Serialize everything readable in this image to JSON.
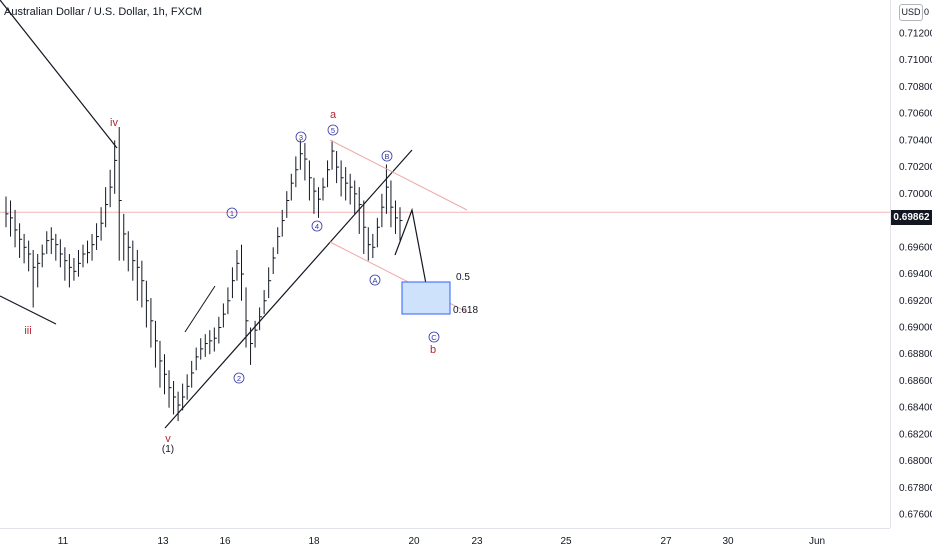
{
  "header": {
    "title": "Australian Dollar / U.S. Dollar, 1h, FXCM"
  },
  "price_axis": {
    "currency_button": "USD",
    "currency_suffix": "0",
    "ticks": [
      "0.71200",
      "0.71000",
      "0.70800",
      "0.70600",
      "0.70400",
      "0.70200",
      "0.70000",
      "0.69800",
      "0.69600",
      "0.69400",
      "0.69200",
      "0.69000",
      "0.68800",
      "0.68600",
      "0.68400",
      "0.68200",
      "0.68000",
      "0.67800",
      "0.67600"
    ],
    "last_price": "0.69862"
  },
  "time_axis": {
    "ticks": [
      "11",
      "13",
      "16",
      "18",
      "20",
      "23",
      "25",
      "27",
      "30",
      "Jun"
    ]
  },
  "colors": {
    "line": "#131722",
    "wave_red": "#b22833",
    "wave_blue": "#3135a6",
    "channel_red": "#f0a8a8",
    "box_fill": "#cfe2fb",
    "box_stroke": "#2962ff",
    "current_line": "#f4b6b6"
  },
  "chart_data": {
    "type": "ohlc",
    "title": "Australian Dollar / U.S. Dollar, 1h, FXCM",
    "ylim": [
      0.675,
      0.7145
    ],
    "series": [
      {
        "name": "AUD/USD",
        "points": [
          [
            0.6998,
            0.6985,
            0.6975
          ],
          [
            0.6995,
            0.6982,
            0.6968
          ],
          [
            0.6988,
            0.6973,
            0.696
          ],
          [
            0.6978,
            0.6966,
            0.6952
          ],
          [
            0.697,
            0.696,
            0.6948
          ],
          [
            0.6965,
            0.6955,
            0.6942
          ],
          [
            0.6958,
            0.6945,
            0.6915
          ],
          [
            0.6955,
            0.6948,
            0.693
          ],
          [
            0.6962,
            0.6955,
            0.6945
          ],
          [
            0.6972,
            0.6965,
            0.6955
          ],
          [
            0.6975,
            0.6966,
            0.6955
          ],
          [
            0.697,
            0.6962,
            0.695
          ],
          [
            0.6966,
            0.6955,
            0.6945
          ],
          [
            0.696,
            0.695,
            0.6935
          ],
          [
            0.6955,
            0.6945,
            0.693
          ],
          [
            0.6952,
            0.6942,
            0.6935
          ],
          [
            0.6958,
            0.6948,
            0.6938
          ],
          [
            0.6962,
            0.6955,
            0.6945
          ],
          [
            0.6965,
            0.6956,
            0.6948
          ],
          [
            0.697,
            0.6962,
            0.695
          ],
          [
            0.6978,
            0.6968,
            0.6958
          ],
          [
            0.699,
            0.6978,
            0.6965
          ],
          [
            0.7005,
            0.6992,
            0.6975
          ],
          [
            0.7018,
            0.7005,
            0.699
          ],
          [
            0.704,
            0.7025,
            0.7
          ],
          [
            0.705,
            0.6995,
            0.695
          ],
          [
            0.6985,
            0.697,
            0.695
          ],
          [
            0.6972,
            0.696,
            0.6942
          ],
          [
            0.6965,
            0.695,
            0.6935
          ],
          [
            0.6958,
            0.6945,
            0.692
          ],
          [
            0.695,
            0.6935,
            0.6915
          ],
          [
            0.6935,
            0.692,
            0.69
          ],
          [
            0.6922,
            0.6905,
            0.6885
          ],
          [
            0.6905,
            0.689,
            0.687
          ],
          [
            0.689,
            0.6875,
            0.6855
          ],
          [
            0.688,
            0.6865,
            0.685
          ],
          [
            0.6868,
            0.6855,
            0.684
          ],
          [
            0.686,
            0.6848,
            0.6835
          ],
          [
            0.6852,
            0.6842,
            0.683
          ],
          [
            0.6858,
            0.6848,
            0.6838
          ],
          [
            0.6865,
            0.6856,
            0.6846
          ],
          [
            0.6875,
            0.6866,
            0.6855
          ],
          [
            0.6885,
            0.6878,
            0.6868
          ],
          [
            0.6892,
            0.6884,
            0.6876
          ],
          [
            0.6895,
            0.6888,
            0.6878
          ],
          [
            0.6898,
            0.689,
            0.688
          ],
          [
            0.69,
            0.6892,
            0.6882
          ],
          [
            0.6908,
            0.69,
            0.6888
          ],
          [
            0.6918,
            0.691,
            0.69
          ],
          [
            0.693,
            0.692,
            0.691
          ],
          [
            0.6945,
            0.6935,
            0.6922
          ],
          [
            0.6958,
            0.6948,
            0.6935
          ],
          [
            0.6962,
            0.694,
            0.692
          ],
          [
            0.693,
            0.6905,
            0.6885
          ],
          [
            0.69,
            0.6888,
            0.6872
          ],
          [
            0.6905,
            0.6898,
            0.6885
          ],
          [
            0.6915,
            0.6908,
            0.6898
          ],
          [
            0.6928,
            0.692,
            0.691
          ],
          [
            0.6945,
            0.6935,
            0.6922
          ],
          [
            0.696,
            0.6952,
            0.694
          ],
          [
            0.6975,
            0.6968,
            0.6955
          ],
          [
            0.6988,
            0.698,
            0.6968
          ],
          [
            0.7002,
            0.6995,
            0.6982
          ],
          [
            0.7015,
            0.7008,
            0.6995
          ],
          [
            0.7028,
            0.7018,
            0.7005
          ],
          [
            0.704,
            0.703,
            0.7018
          ],
          [
            0.7038,
            0.7026,
            0.701
          ],
          [
            0.7025,
            0.7012,
            0.6995
          ],
          [
            0.7012,
            0.7002,
            0.6985
          ],
          [
            0.7005,
            0.6996,
            0.6982
          ],
          [
            0.7012,
            0.7005,
            0.6995
          ],
          [
            0.7025,
            0.7018,
            0.7005
          ],
          [
            0.704,
            0.7032,
            0.7018
          ],
          [
            0.7032,
            0.702,
            0.7008
          ],
          [
            0.7025,
            0.7012,
            0.6998
          ],
          [
            0.702,
            0.7008,
            0.6995
          ],
          [
            0.7015,
            0.7005,
            0.6992
          ],
          [
            0.701,
            0.7,
            0.6985
          ],
          [
            0.7005,
            0.6992,
            0.697
          ],
          [
            0.6995,
            0.6975,
            0.6955
          ],
          [
            0.6975,
            0.6962,
            0.695
          ],
          [
            0.697,
            0.696,
            0.6952
          ],
          [
            0.6982,
            0.6975,
            0.696
          ],
          [
            0.7,
            0.699,
            0.6975
          ],
          [
            0.7022,
            0.7005,
            0.6985
          ],
          [
            0.701,
            0.699,
            0.6975
          ],
          [
            0.6995,
            0.6982,
            0.697
          ],
          [
            0.699,
            0.698,
            0.6965
          ]
        ]
      }
    ],
    "annotations": {
      "waves_red": [
        "iii",
        "iv",
        "a",
        "b"
      ],
      "waves_circled": [
        "1",
        "2",
        "3",
        "4",
        "5",
        "A",
        "B",
        "C"
      ],
      "bottom_labels": [
        "v",
        "(1)"
      ],
      "fib_levels": [
        "0.5",
        "0.618"
      ]
    }
  }
}
